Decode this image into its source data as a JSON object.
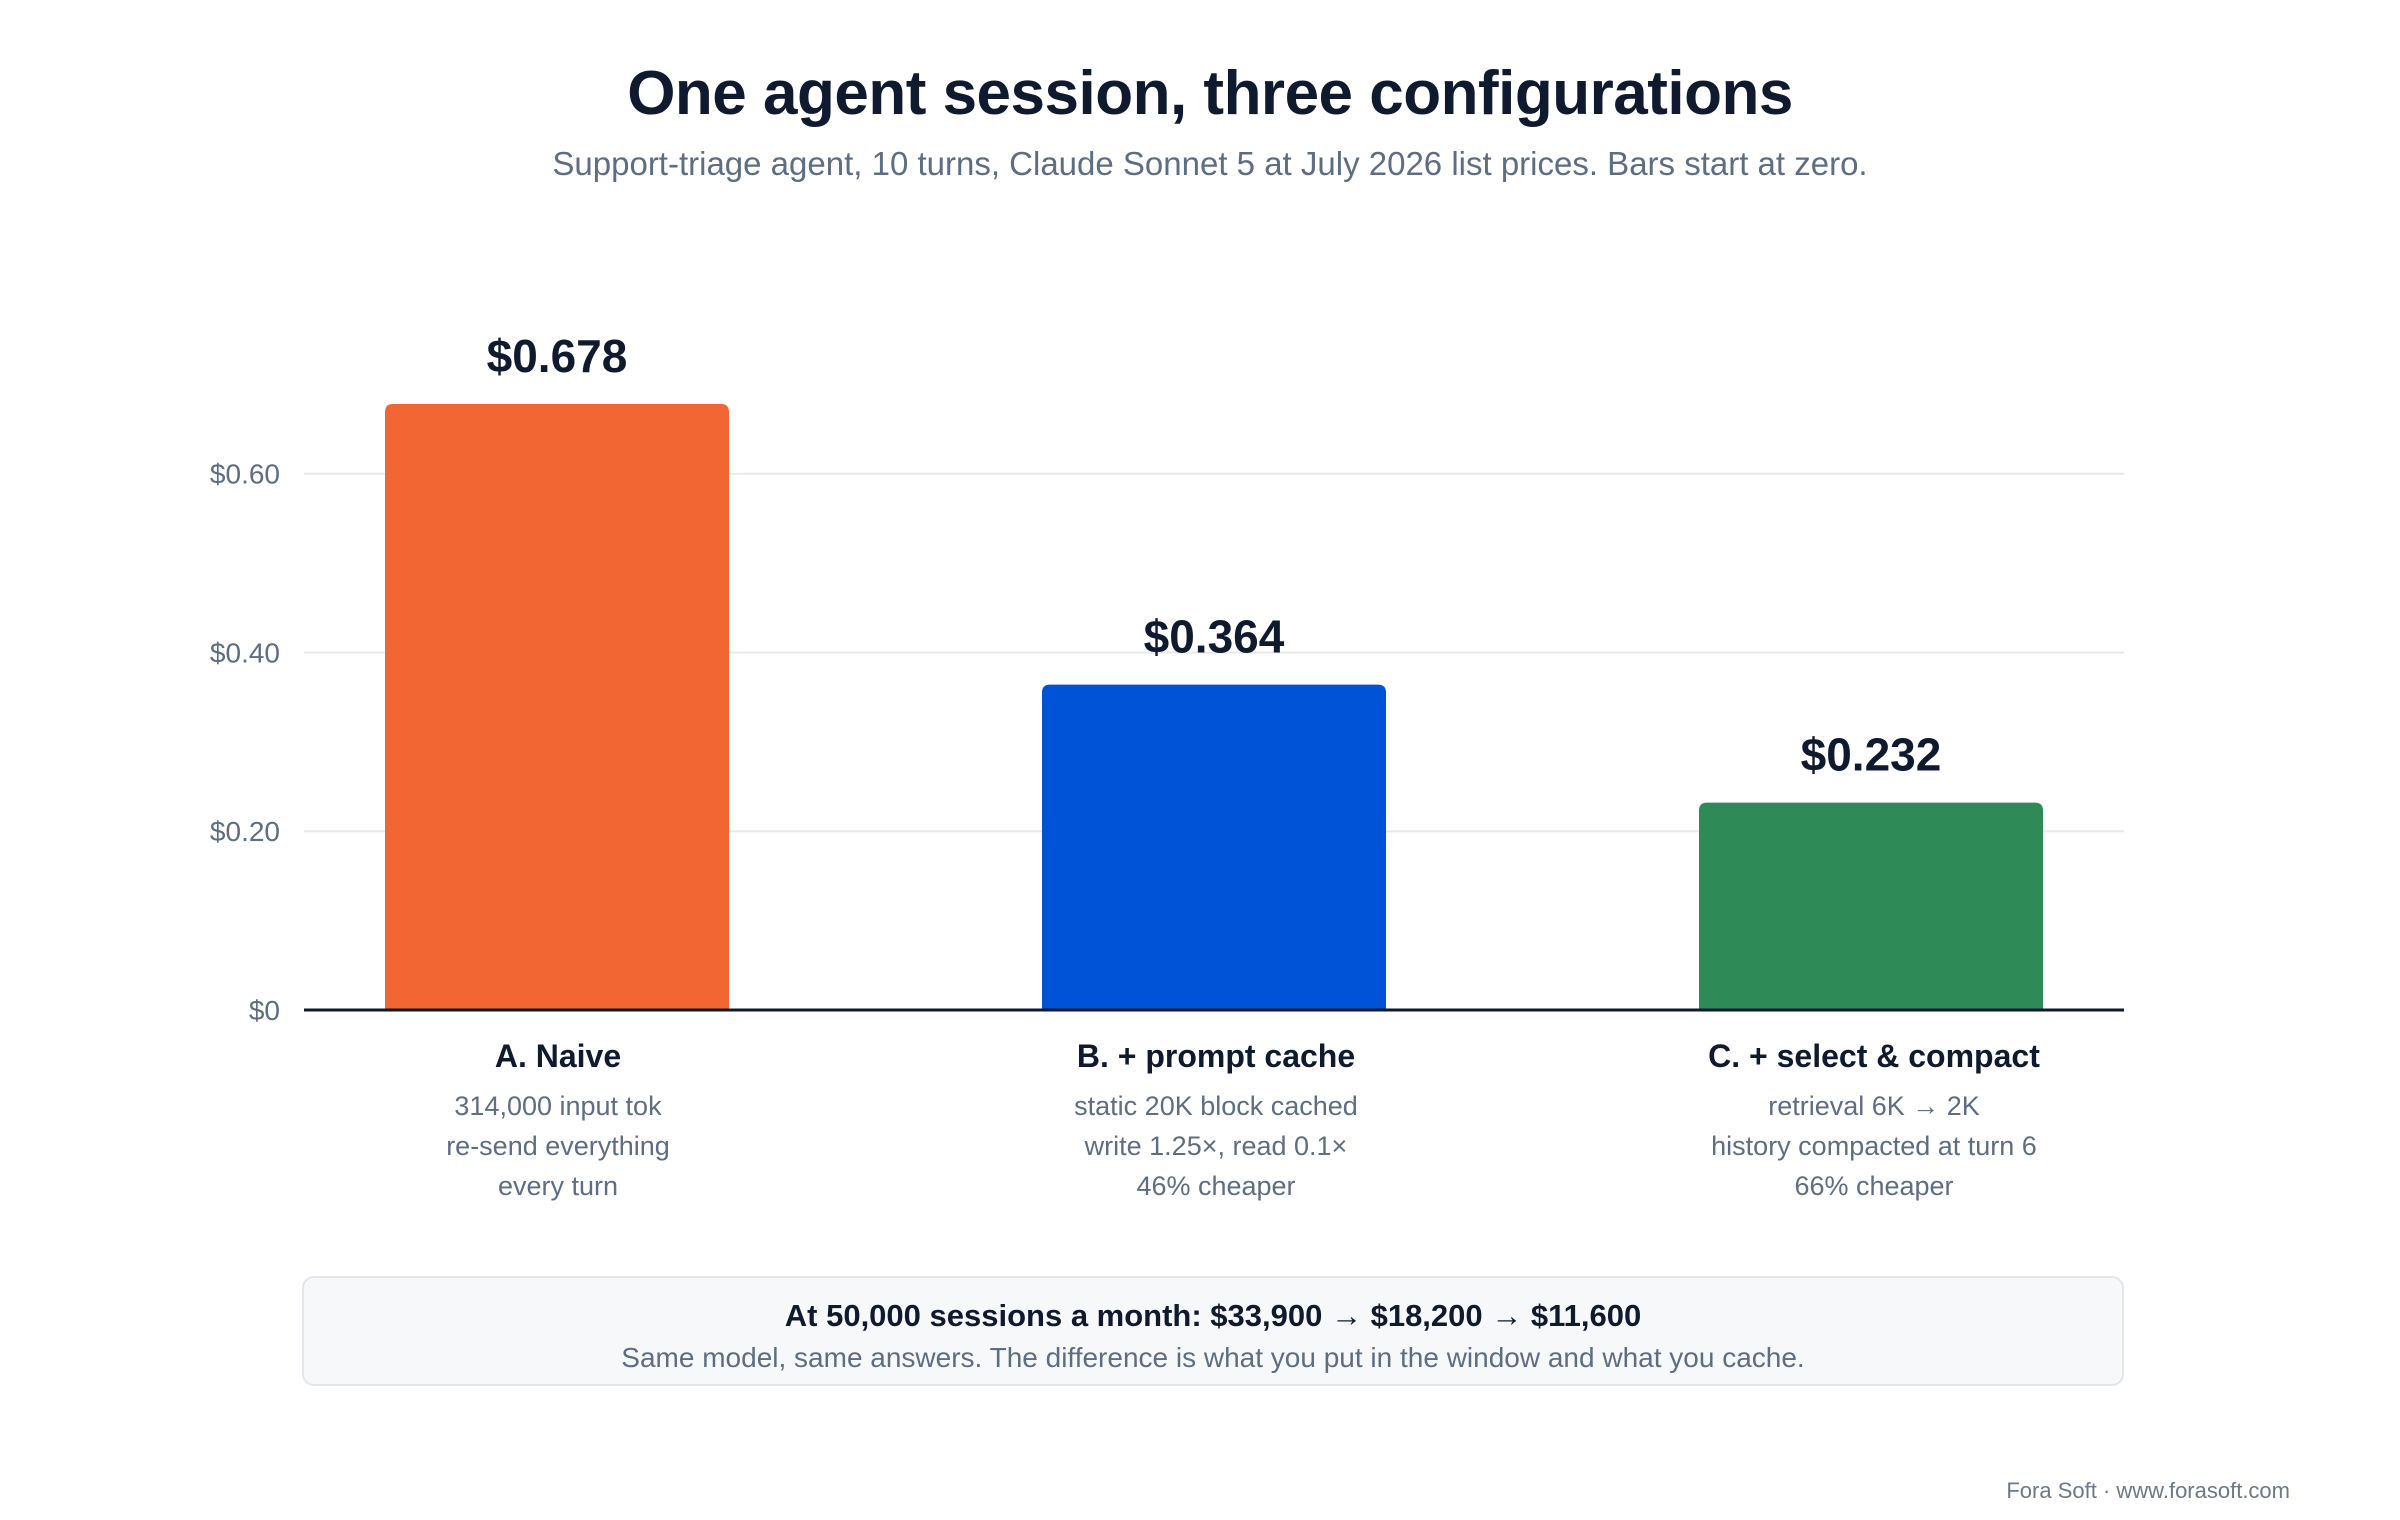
{
  "header": {
    "title": "One agent session, three configurations",
    "subtitle": "Support-triage agent, 10 turns, Claude Sonnet 5 at July 2026 list prices. Bars start at zero."
  },
  "chart_data": {
    "type": "bar",
    "categories": [
      "A. Naive",
      "B. + prompt cache",
      "C. + select & compact"
    ],
    "values": [
      0.678,
      0.364,
      0.232
    ],
    "value_labels": [
      "$0.678",
      "$0.364",
      "$0.232"
    ],
    "bar_colors": [
      "#f26633",
      "#0052d6",
      "#2e8b57"
    ],
    "ylim": [
      0,
      0.678
    ],
    "yticks": [
      0,
      0.2,
      0.4,
      0.6
    ],
    "ytick_labels": [
      "$0",
      "$0.20",
      "$0.40",
      "$0.60"
    ],
    "grid": true,
    "notes": [
      [
        "314,000 input tok",
        "re-send everything",
        "every turn"
      ],
      [
        "static 20K block cached",
        "write 1.25×, read 0.1×",
        "46% cheaper"
      ],
      [
        "retrieval 6K → 2K",
        "history compacted at turn 6",
        "66% cheaper"
      ]
    ]
  },
  "callout": {
    "headline": "At 50,000 sessions a month: $33,900 → $18,200 → $11,600",
    "subline": "Same model, same answers. The difference is what you put in the window and what you cache."
  },
  "footer": {
    "credit": "Fora Soft · www.forasoft.com"
  },
  "colors": {
    "title": "#101a2e",
    "muted": "#5e6d82",
    "grid": "#e5e8ec",
    "axis": "#101a2e"
  }
}
